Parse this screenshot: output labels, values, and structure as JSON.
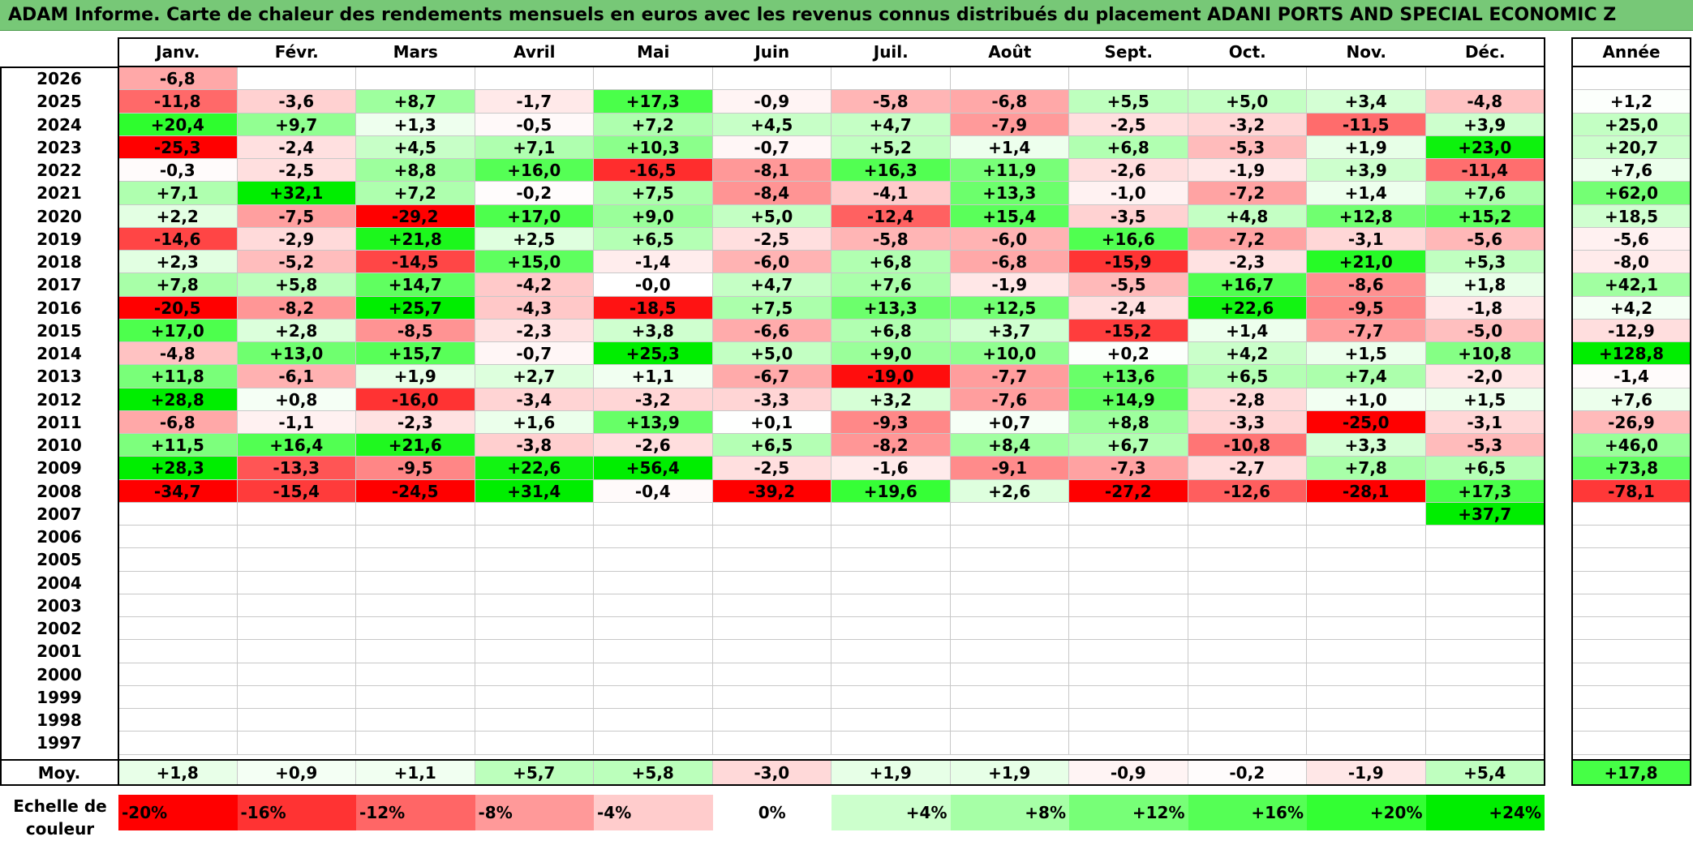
{
  "title": "ADAM Informe. Carte de chaleur des rendements mensuels en euros avec les revenus connus distribués du placement ADANI PORTS AND SPECIAL ECONOMIC Z",
  "chart_data": {
    "type": "heatmap",
    "months": [
      "Janv.",
      "Févr.",
      "Mars",
      "Avril",
      "Mai",
      "Juin",
      "Juil.",
      "Août",
      "Sept.",
      "Oct.",
      "Nov.",
      "Déc."
    ],
    "year_header": "Année",
    "rows": [
      {
        "year": "2026",
        "values": [
          "-6,8",
          null,
          null,
          null,
          null,
          null,
          null,
          null,
          null,
          null,
          null,
          null
        ],
        "annual": null
      },
      {
        "year": "2025",
        "values": [
          "-11,8",
          "-3,6",
          "+8,7",
          "-1,7",
          "+17,3",
          "-0,9",
          "-5,8",
          "-6,8",
          "+5,5",
          "+5,0",
          "+3,4",
          "-4,8"
        ],
        "annual": "+1,2"
      },
      {
        "year": "2024",
        "values": [
          "+20,4",
          "+9,7",
          "+1,3",
          "-0,5",
          "+7,2",
          "+4,5",
          "+4,7",
          "-7,9",
          "-2,5",
          "-3,2",
          "-11,5",
          "+3,9"
        ],
        "annual": "+25,0"
      },
      {
        "year": "2023",
        "values": [
          "-25,3",
          "-2,4",
          "+4,5",
          "+7,1",
          "+10,3",
          "-0,7",
          "+5,2",
          "+1,4",
          "+6,8",
          "-5,3",
          "+1,9",
          "+23,0"
        ],
        "annual": "+20,7"
      },
      {
        "year": "2022",
        "values": [
          "-0,3",
          "-2,5",
          "+8,8",
          "+16,0",
          "-16,5",
          "-8,1",
          "+16,3",
          "+11,9",
          "-2,6",
          "-1,9",
          "+3,9",
          "-11,4"
        ],
        "annual": "+7,6"
      },
      {
        "year": "2021",
        "values": [
          "+7,1",
          "+32,1",
          "+7,2",
          "-0,2",
          "+7,5",
          "-8,4",
          "-4,1",
          "+13,3",
          "-1,0",
          "-7,2",
          "+1,4",
          "+7,6"
        ],
        "annual": "+62,0"
      },
      {
        "year": "2020",
        "values": [
          "+2,2",
          "-7,5",
          "-29,2",
          "+17,0",
          "+9,0",
          "+5,0",
          "-12,4",
          "+15,4",
          "-3,5",
          "+4,8",
          "+12,8",
          "+15,2"
        ],
        "annual": "+18,5"
      },
      {
        "year": "2019",
        "values": [
          "-14,6",
          "-2,9",
          "+21,8",
          "+2,5",
          "+6,5",
          "-2,5",
          "-5,8",
          "-6,0",
          "+16,6",
          "-7,2",
          "-3,1",
          "-5,6"
        ],
        "annual": "-5,6"
      },
      {
        "year": "2018",
        "values": [
          "+2,3",
          "-5,2",
          "-14,5",
          "+15,0",
          "-1,4",
          "-6,0",
          "+6,8",
          "-6,8",
          "-15,9",
          "-2,3",
          "+21,0",
          "+5,3"
        ],
        "annual": "-8,0"
      },
      {
        "year": "2017",
        "values": [
          "+7,8",
          "+5,8",
          "+14,7",
          "-4,2",
          "-0,0",
          "+4,7",
          "+7,6",
          "-1,9",
          "-5,5",
          "+16,7",
          "-8,6",
          "+1,8"
        ],
        "annual": "+42,1"
      },
      {
        "year": "2016",
        "values": [
          "-20,5",
          "-8,2",
          "+25,7",
          "-4,3",
          "-18,5",
          "+7,5",
          "+13,3",
          "+12,5",
          "-2,4",
          "+22,6",
          "-9,5",
          "-1,8"
        ],
        "annual": "+4,2"
      },
      {
        "year": "2015",
        "values": [
          "+17,0",
          "+2,8",
          "-8,5",
          "-2,3",
          "+3,8",
          "-6,6",
          "+6,8",
          "+3,7",
          "-15,2",
          "+1,4",
          "-7,7",
          "-5,0"
        ],
        "annual": "-12,9"
      },
      {
        "year": "2014",
        "values": [
          "-4,8",
          "+13,0",
          "+15,7",
          "-0,7",
          "+25,3",
          "+5,0",
          "+9,0",
          "+10,0",
          "+0,2",
          "+4,2",
          "+1,5",
          "+10,8"
        ],
        "annual": "+128,8"
      },
      {
        "year": "2013",
        "values": [
          "+11,8",
          "-6,1",
          "+1,9",
          "+2,7",
          "+1,1",
          "-6,7",
          "-19,0",
          "-7,7",
          "+13,6",
          "+6,5",
          "+7,4",
          "-2,0"
        ],
        "annual": "-1,4"
      },
      {
        "year": "2012",
        "values": [
          "+28,8",
          "+0,8",
          "-16,0",
          "-3,4",
          "-3,2",
          "-3,3",
          "+3,2",
          "-7,6",
          "+14,9",
          "-2,8",
          "+1,0",
          "+1,5"
        ],
        "annual": "+7,6"
      },
      {
        "year": "2011",
        "values": [
          "-6,8",
          "-1,1",
          "-2,3",
          "+1,6",
          "+13,9",
          "+0,1",
          "-9,3",
          "+0,7",
          "+8,8",
          "-3,3",
          "-25,0",
          "-3,1"
        ],
        "annual": "-26,9"
      },
      {
        "year": "2010",
        "values": [
          "+11,5",
          "+16,4",
          "+21,6",
          "-3,8",
          "-2,6",
          "+6,5",
          "-8,2",
          "+8,4",
          "+6,7",
          "-10,8",
          "+3,3",
          "-5,3"
        ],
        "annual": "+46,0"
      },
      {
        "year": "2009",
        "values": [
          "+28,3",
          "-13,3",
          "-9,5",
          "+22,6",
          "+56,4",
          "-2,5",
          "-1,6",
          "-9,1",
          "-7,3",
          "-2,7",
          "+7,8",
          "+6,5"
        ],
        "annual": "+73,8"
      },
      {
        "year": "2008",
        "values": [
          "-34,7",
          "-15,4",
          "-24,5",
          "+31,4",
          "-0,4",
          "-39,2",
          "+19,6",
          "+2,6",
          "-27,2",
          "-12,6",
          "-28,1",
          "+17,3"
        ],
        "annual": "-78,1"
      },
      {
        "year": "2007",
        "values": [
          null,
          null,
          null,
          null,
          null,
          null,
          null,
          null,
          null,
          null,
          null,
          "+37,7"
        ],
        "annual": null
      },
      {
        "year": "2006",
        "values": [
          null,
          null,
          null,
          null,
          null,
          null,
          null,
          null,
          null,
          null,
          null,
          null
        ],
        "annual": null
      },
      {
        "year": "2005",
        "values": [
          null,
          null,
          null,
          null,
          null,
          null,
          null,
          null,
          null,
          null,
          null,
          null
        ],
        "annual": null
      },
      {
        "year": "2004",
        "values": [
          null,
          null,
          null,
          null,
          null,
          null,
          null,
          null,
          null,
          null,
          null,
          null
        ],
        "annual": null
      },
      {
        "year": "2003",
        "values": [
          null,
          null,
          null,
          null,
          null,
          null,
          null,
          null,
          null,
          null,
          null,
          null
        ],
        "annual": null
      },
      {
        "year": "2002",
        "values": [
          null,
          null,
          null,
          null,
          null,
          null,
          null,
          null,
          null,
          null,
          null,
          null
        ],
        "annual": null
      },
      {
        "year": "2001",
        "values": [
          null,
          null,
          null,
          null,
          null,
          null,
          null,
          null,
          null,
          null,
          null,
          null
        ],
        "annual": null
      },
      {
        "year": "2000",
        "values": [
          null,
          null,
          null,
          null,
          null,
          null,
          null,
          null,
          null,
          null,
          null,
          null
        ],
        "annual": null
      },
      {
        "year": "1999",
        "values": [
          null,
          null,
          null,
          null,
          null,
          null,
          null,
          null,
          null,
          null,
          null,
          null
        ],
        "annual": null
      },
      {
        "year": "1998",
        "values": [
          null,
          null,
          null,
          null,
          null,
          null,
          null,
          null,
          null,
          null,
          null,
          null
        ],
        "annual": null
      },
      {
        "year": "1997",
        "values": [
          null,
          null,
          null,
          null,
          null,
          null,
          null,
          null,
          null,
          null,
          null,
          null
        ],
        "annual": null
      }
    ],
    "average": {
      "label": "Moy.",
      "values": [
        "+1,8",
        "+0,9",
        "+1,1",
        "+5,7",
        "+5,8",
        "-3,0",
        "+1,9",
        "+1,9",
        "-0,9",
        "-0,2",
        "-1,9",
        "+5,4"
      ],
      "annual": "+17,8"
    },
    "color_scale": {
      "label": "Echelle de couleur",
      "steps": [
        {
          "label": "-20%",
          "value": -20,
          "color": "#ff0000"
        },
        {
          "label": "-16%",
          "value": -16,
          "color": "#ff3333"
        },
        {
          "label": "-12%",
          "value": -12,
          "color": "#ff6666"
        },
        {
          "label": "-8%",
          "value": -8,
          "color": "#ff9999"
        },
        {
          "label": "-4%",
          "value": -4,
          "color": "#ffcccc"
        },
        {
          "label": "0%",
          "value": 0,
          "color": "#ffffff"
        },
        {
          "label": "+4%",
          "value": 4,
          "color": "#ccffcc"
        },
        {
          "label": "+8%",
          "value": 8,
          "color": "#a6ffa6"
        },
        {
          "label": "+12%",
          "value": 12,
          "color": "#77ff77"
        },
        {
          "label": "+16%",
          "value": 16,
          "color": "#55ff55"
        },
        {
          "label": "+20%",
          "value": 20,
          "color": "#33ff33"
        },
        {
          "label": "+24%",
          "value": 24,
          "color": "#00ee00"
        }
      ]
    },
    "colors": {
      "title_bg": "#77c877",
      "negative_max": "#ff0000",
      "positive_max": "#00ee00"
    }
  }
}
